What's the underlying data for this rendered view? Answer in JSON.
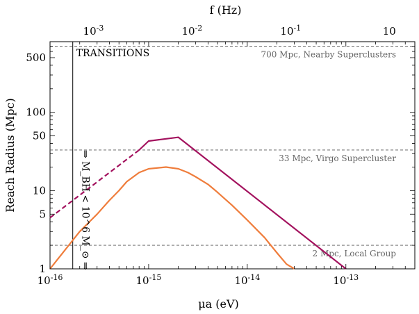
{
  "chart_data": {
    "type": "line",
    "xlabel": "μa (eV)",
    "ylabel": "Reach Radius (Mpc)",
    "x2label": "f (Hz)",
    "xscale": "log",
    "yscale": "log",
    "xlim": [
      1e-16,
      5e-13
    ],
    "ylim": [
      1,
      800
    ],
    "x_ticks": [
      "10^-16",
      "10^-15",
      "10^-14",
      "10^-13"
    ],
    "y_ticks": [
      "1",
      "5",
      "10",
      "50",
      "100",
      "500"
    ],
    "x2_ticks": [
      "10^-3",
      "10^-2",
      "10^-1",
      "10"
    ],
    "reference_lines": [
      {
        "y": 700,
        "label": "700 Mpc, Nearby Superclusters"
      },
      {
        "y": 33,
        "label": "33 Mpc, Virgo Supercluster"
      },
      {
        "y": 2,
        "label": "2 Mpc, Local Group"
      }
    ],
    "vertical_line": {
      "x": 1.7e-16
    },
    "annotations": {
      "transitions": "TRANSITIONS",
      "mass_limit": "⇒ M_BH < 10^6 M_⊙ ⇒"
    },
    "series": [
      {
        "color": "#a3125e",
        "dashed_x": [
          1e-16,
          8e-16
        ],
        "dashed_y": [
          4.5,
          33
        ],
        "x": [
          8e-16,
          1e-15,
          2e-15,
          1e-13
        ],
        "y": [
          33,
          43,
          48,
          1
        ]
      },
      {
        "color": "#ef7d3c",
        "x": [
          1e-16,
          2e-16,
          3e-16,
          4e-16,
          5e-16,
          6e-16,
          8e-16,
          1e-15,
          1.5e-15,
          2e-15,
          2.5e-15,
          3e-15,
          4e-15,
          5e-15,
          7e-15,
          1e-14,
          1.5e-14,
          2e-14,
          2.5e-14,
          3e-14
        ],
        "y": [
          1,
          3,
          5,
          7.5,
          10,
          13,
          17,
          19,
          20,
          19,
          17,
          15,
          12,
          9.5,
          6.5,
          4.2,
          2.5,
          1.6,
          1.15,
          1
        ]
      }
    ]
  }
}
